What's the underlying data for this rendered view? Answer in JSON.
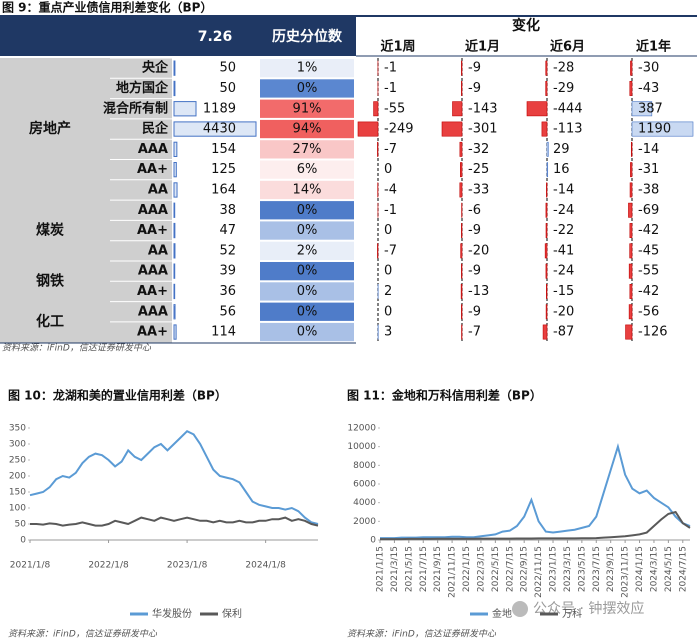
{
  "table": {
    "title": "图 9：重点产业债信用利差变化（BP）",
    "header": {
      "level": "7.26",
      "pct": "历史分位数",
      "change": "变化",
      "periods": [
        "近1周",
        "近1月",
        "近6月",
        "近1年"
      ]
    },
    "groups": [
      {
        "label": "房地产",
        "rows": [
          {
            "name": "央企",
            "level": 50,
            "pct": "1%",
            "pct_color": "#e9eef8",
            "changes": [
              -1,
              -9,
              -28,
              -30
            ]
          },
          {
            "name": "地方国企",
            "level": 50,
            "pct": "0%",
            "pct_color": "#5b87d0",
            "changes": [
              -1,
              -9,
              -29,
              -43
            ]
          },
          {
            "name": "混合所有制",
            "level": 1189,
            "pct": "91%",
            "pct_color": "#f26b6b",
            "changes": [
              -55,
              -143,
              -444,
              387
            ]
          },
          {
            "name": "民企",
            "level": 4430,
            "pct": "94%",
            "pct_color": "#f0605f",
            "changes": [
              -249,
              -301,
              -113,
              1190
            ]
          },
          {
            "name": "AAA",
            "level": 154,
            "pct": "27%",
            "pct_color": "#f9c7c7",
            "changes": [
              -7,
              -32,
              29,
              -14
            ]
          },
          {
            "name": "AA+",
            "level": 125,
            "pct": "6%",
            "pct_color": "#fdeeee",
            "changes": [
              0,
              -25,
              16,
              -31
            ]
          },
          {
            "name": "AA",
            "level": 164,
            "pct": "14%",
            "pct_color": "#fbdcdc",
            "changes": [
              -4,
              -33,
              -14,
              -38
            ]
          }
        ]
      },
      {
        "label": "煤炭",
        "rows": [
          {
            "name": "AAA",
            "level": 38,
            "pct": "0%",
            "pct_color": "#4f7cc9",
            "changes": [
              -1,
              -6,
              -24,
              -69
            ]
          },
          {
            "name": "AA+",
            "level": 47,
            "pct": "0%",
            "pct_color": "#a9c0e6",
            "changes": [
              0,
              -9,
              -22,
              -42
            ]
          },
          {
            "name": "AA",
            "level": 52,
            "pct": "2%",
            "pct_color": "#e8eef8",
            "changes": [
              -7,
              -20,
              -41,
              -45
            ]
          }
        ]
      },
      {
        "label": "钢铁",
        "rows": [
          {
            "name": "AAA",
            "level": 39,
            "pct": "0%",
            "pct_color": "#4f7cc9",
            "changes": [
              0,
              -9,
              -24,
              -55
            ]
          },
          {
            "name": "AA+",
            "level": 36,
            "pct": "0%",
            "pct_color": "#a9c0e6",
            "changes": [
              2,
              -13,
              -15,
              -42
            ]
          }
        ]
      },
      {
        "label": "化工",
        "rows": [
          {
            "name": "AAA",
            "level": 56,
            "pct": "0%",
            "pct_color": "#4f7cc9",
            "changes": [
              0,
              -9,
              -20,
              -56
            ]
          },
          {
            "name": "AA+",
            "level": 114,
            "pct": "0%",
            "pct_color": "#a9c0e6",
            "changes": [
              3,
              -7,
              -87,
              -126
            ]
          }
        ]
      }
    ],
    "source": "资料来源：iFinD，信达证券研发中心"
  },
  "chart_data": [
    {
      "type": "line",
      "title": "图 10：龙湖和美的置业信用利差（BP）",
      "xlim": [
        0,
        44
      ],
      "xticks": [
        {
          "value": 0,
          "label": "2021/1/8"
        },
        {
          "value": 12,
          "label": "2022/1/8"
        },
        {
          "value": 24,
          "label": "2023/1/8"
        },
        {
          "value": 36,
          "label": "2024/1/8"
        }
      ],
      "ylim": [
        0,
        350
      ],
      "yticks": [
        0,
        50,
        100,
        150,
        200,
        250,
        300,
        350
      ],
      "series": [
        {
          "name": "华发股份",
          "color": "#5b9bd5",
          "values": [
            140,
            145,
            150,
            165,
            190,
            200,
            195,
            210,
            240,
            260,
            270,
            265,
            250,
            230,
            245,
            280,
            260,
            250,
            270,
            290,
            300,
            280,
            300,
            320,
            340,
            330,
            300,
            260,
            220,
            200,
            195,
            190,
            180,
            150,
            120,
            110,
            105,
            100,
            100,
            95,
            100,
            90,
            70,
            55,
            50
          ]
        },
        {
          "name": "保利",
          "color": "#595959",
          "values": [
            50,
            50,
            48,
            52,
            50,
            45,
            48,
            50,
            55,
            50,
            45,
            45,
            50,
            60,
            55,
            50,
            60,
            70,
            65,
            60,
            70,
            65,
            60,
            65,
            70,
            65,
            60,
            60,
            55,
            60,
            55,
            55,
            60,
            55,
            55,
            60,
            60,
            65,
            65,
            70,
            60,
            65,
            60,
            50,
            45
          ]
        }
      ],
      "source": "资料来源：iFinD，信达证券研发中心"
    },
    {
      "type": "line",
      "title": "图 11：金地和万科信用利差（BP）",
      "xlim": [
        0,
        43
      ],
      "xticks": [
        {
          "value": 0,
          "label": "2021/1/15"
        },
        {
          "value": 2,
          "label": "2021/3/15"
        },
        {
          "value": 4,
          "label": "2021/5/15"
        },
        {
          "value": 6,
          "label": "2021/7/15"
        },
        {
          "value": 8,
          "label": "2021/9/15"
        },
        {
          "value": 10,
          "label": "2021/11/15"
        },
        {
          "value": 12,
          "label": "2022/1/15"
        },
        {
          "value": 14,
          "label": "2022/3/15"
        },
        {
          "value": 16,
          "label": "2022/5/15"
        },
        {
          "value": 18,
          "label": "2022/7/15"
        },
        {
          "value": 20,
          "label": "2022/9/15"
        },
        {
          "value": 22,
          "label": "2022/11/15"
        },
        {
          "value": 24,
          "label": "2023/1/15"
        },
        {
          "value": 26,
          "label": "2023/3/15"
        },
        {
          "value": 28,
          "label": "2023/5/15"
        },
        {
          "value": 30,
          "label": "2023/7/15"
        },
        {
          "value": 32,
          "label": "2023/9/15"
        },
        {
          "value": 34,
          "label": "2023/11/15"
        },
        {
          "value": 36,
          "label": "2024/1/15"
        },
        {
          "value": 38,
          "label": "2024/3/15"
        },
        {
          "value": 40,
          "label": "2024/5/15"
        },
        {
          "value": 42,
          "label": "2024/7/15"
        }
      ],
      "ylim": [
        0,
        12000
      ],
      "yticks": [
        0,
        2000,
        4000,
        6000,
        8000,
        10000,
        12000
      ],
      "series": [
        {
          "name": "金地",
          "color": "#5b9bd5",
          "values": [
            200,
            200,
            200,
            250,
            250,
            250,
            300,
            300,
            300,
            300,
            350,
            350,
            300,
            300,
            400,
            500,
            600,
            900,
            1000,
            1500,
            2500,
            4300,
            2000,
            900,
            800,
            900,
            1000,
            1100,
            1300,
            1500,
            2500,
            5000,
            7500,
            10000,
            7000,
            5500,
            5000,
            5300,
            4500,
            4000,
            3500,
            2500,
            1800,
            1500
          ]
        },
        {
          "name": "万科",
          "color": "#595959",
          "values": [
            100,
            100,
            100,
            100,
            120,
            120,
            120,
            120,
            130,
            130,
            130,
            140,
            140,
            140,
            150,
            150,
            150,
            150,
            150,
            160,
            160,
            160,
            170,
            170,
            170,
            180,
            180,
            180,
            190,
            190,
            200,
            250,
            300,
            350,
            400,
            500,
            600,
            800,
            1500,
            2200,
            2800,
            3000,
            1800,
            1300
          ]
        }
      ],
      "source": "资料来源：iFinD，信达证券研发中心"
    }
  ],
  "watermark": "公众号 · 钟摆效应"
}
